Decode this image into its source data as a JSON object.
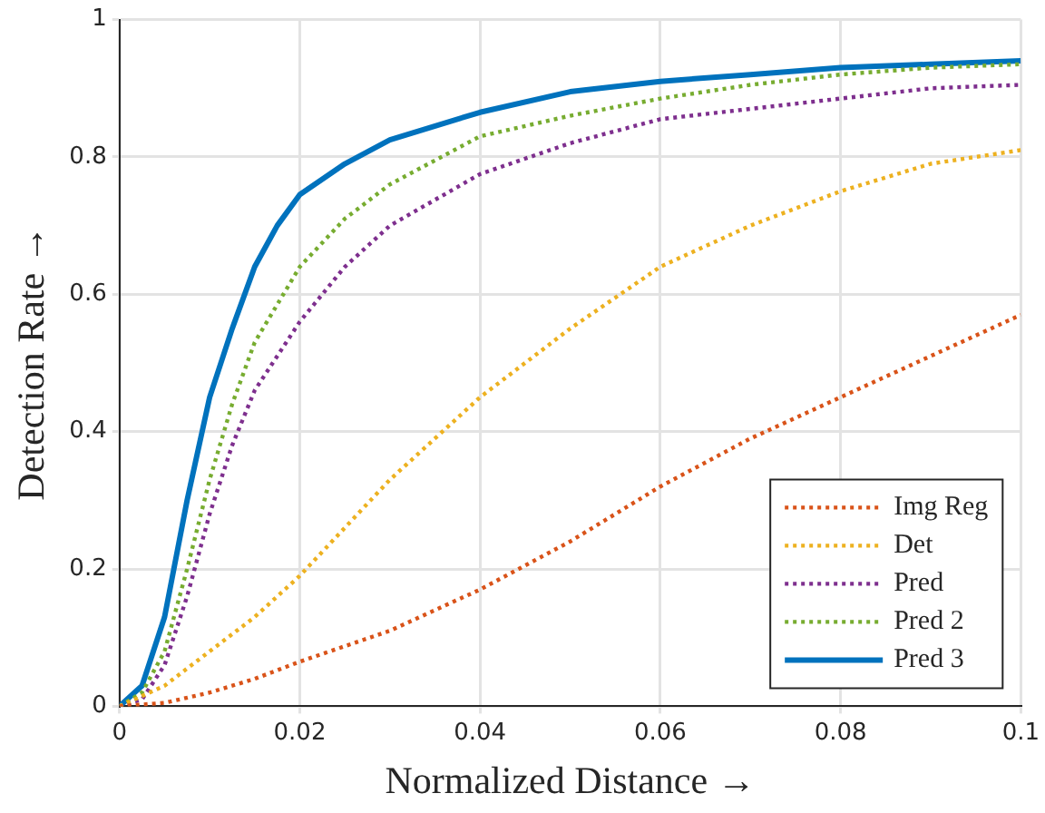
{
  "chart_data": {
    "type": "line",
    "xlabel": "Normalized Distance →",
    "ylabel": "Detection Rate →",
    "xlim": [
      0,
      0.1
    ],
    "xticks": [
      0,
      0.02,
      0.04,
      0.06,
      0.08,
      {
        "value": 0.1,
        "label": "0.1"
      }
    ],
    "ylim": [
      0,
      1
    ],
    "yticks": [
      0,
      0.2,
      0.4,
      0.6,
      0.8,
      1
    ],
    "grid": true,
    "legend": "bottom right",
    "marker": "none",
    "series": [
      {
        "name": "Img Reg",
        "color": "#d95319",
        "line_style": "dotted",
        "x": [
          0,
          0.005,
          0.01,
          0.015,
          0.02,
          0.03,
          0.04,
          0.05,
          0.06,
          0.07,
          0.08,
          0.09,
          0.1
        ],
        "values": [
          0,
          0.005,
          0.02,
          0.04,
          0.065,
          0.11,
          0.17,
          0.24,
          0.32,
          0.39,
          0.45,
          0.51,
          0.57
        ]
      },
      {
        "name": "Det",
        "color": "#edb120",
        "line_style": "dotted",
        "x": [
          0,
          0.005,
          0.01,
          0.015,
          0.02,
          0.025,
          0.03,
          0.035,
          0.04,
          0.05,
          0.06,
          0.07,
          0.08,
          0.09,
          0.1
        ],
        "values": [
          0,
          0.03,
          0.08,
          0.13,
          0.19,
          0.26,
          0.33,
          0.39,
          0.45,
          0.55,
          0.64,
          0.7,
          0.75,
          0.79,
          0.81
        ]
      },
      {
        "name": "Pred",
        "color": "#7e2f8e",
        "line_style": "dotted",
        "x": [
          0,
          0.0025,
          0.005,
          0.0075,
          0.01,
          0.0125,
          0.015,
          0.02,
          0.025,
          0.03,
          0.04,
          0.05,
          0.06,
          0.07,
          0.08,
          0.09,
          0.1
        ],
        "values": [
          0,
          0.01,
          0.06,
          0.16,
          0.28,
          0.38,
          0.46,
          0.56,
          0.64,
          0.7,
          0.775,
          0.82,
          0.855,
          0.87,
          0.885,
          0.9,
          0.905
        ]
      },
      {
        "name": "Pred 2",
        "color": "#77ac30",
        "line_style": "dotted",
        "x": [
          0,
          0.0025,
          0.005,
          0.0075,
          0.01,
          0.0125,
          0.015,
          0.02,
          0.025,
          0.03,
          0.04,
          0.05,
          0.06,
          0.07,
          0.08,
          0.09,
          0.1
        ],
        "values": [
          0,
          0.02,
          0.08,
          0.2,
          0.33,
          0.44,
          0.53,
          0.64,
          0.71,
          0.76,
          0.83,
          0.86,
          0.885,
          0.905,
          0.92,
          0.93,
          0.935
        ]
      },
      {
        "name": "Pred 3",
        "color": "#0072bd",
        "line_style": "solid",
        "x": [
          0,
          0.0025,
          0.005,
          0.0075,
          0.01,
          0.0125,
          0.015,
          0.0175,
          0.02,
          0.025,
          0.03,
          0.04,
          0.05,
          0.06,
          0.07,
          0.08,
          0.09,
          0.1
        ],
        "values": [
          0,
          0.03,
          0.13,
          0.3,
          0.45,
          0.55,
          0.64,
          0.7,
          0.745,
          0.79,
          0.825,
          0.865,
          0.895,
          0.91,
          0.92,
          0.93,
          0.935,
          0.94
        ]
      }
    ]
  }
}
